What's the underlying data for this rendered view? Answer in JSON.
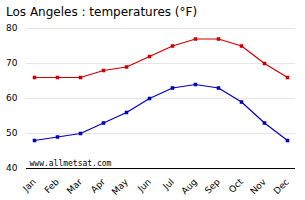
{
  "chart_data": {
    "type": "line",
    "title": "Los Angeles : temperatures (°F)",
    "categories": [
      "Jan",
      "Feb",
      "Mar",
      "Apr",
      "May",
      "Jun",
      "Jul",
      "Aug",
      "Sep",
      "Oct",
      "Nov",
      "Dec"
    ],
    "series": [
      {
        "color": "#cc0000",
        "marker": "square",
        "values": [
          66,
          66,
          66,
          68,
          69,
          72,
          75,
          77,
          77,
          75,
          70,
          66
        ]
      },
      {
        "color": "#0000bb",
        "marker": "square",
        "values": [
          48,
          49,
          50,
          53,
          56,
          60,
          63,
          64,
          63,
          59,
          53,
          48
        ]
      }
    ],
    "ylim": [
      40,
      80
    ],
    "yticks": [
      40,
      50,
      60,
      70,
      80
    ],
    "grid": true,
    "annotations": [
      "www.allmetsat.com"
    ]
  }
}
